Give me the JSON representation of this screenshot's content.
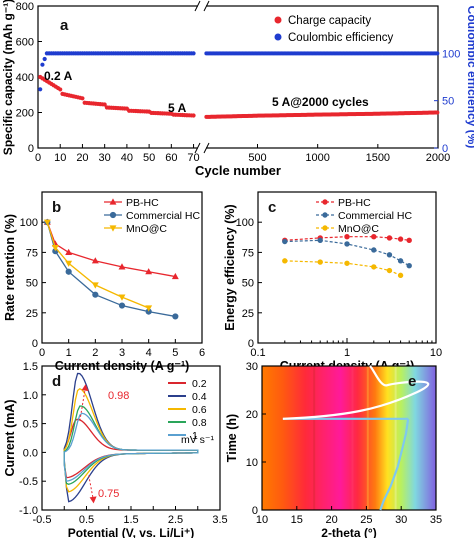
{
  "chart_data": [
    {
      "panel": "a",
      "type": "scatter",
      "ylabel": "Specific capacity (mAh g⁻¹)",
      "y2label": "Coulombic efficiency (%)",
      "xlabel": "Cycle number",
      "ylim": [
        0,
        800
      ],
      "y2lim": [
        0,
        150
      ],
      "yticks": [
        "0",
        "200",
        "400",
        "600",
        "800"
      ],
      "y2ticks": [
        "0",
        "50",
        "100"
      ],
      "xticks_left": [
        "0",
        "10",
        "20",
        "30",
        "40",
        "50",
        "60",
        "70"
      ],
      "xticks_right": [
        "500",
        "1000",
        "1500",
        "2000"
      ],
      "legend": [
        "Charge capacity",
        "Coulombic efficiency"
      ],
      "colors": {
        "charge": "#e8272e",
        "ce": "#1f3ccf"
      },
      "annotations": [
        "0.2 A",
        "5 A",
        "5 A@2000 cycles"
      ],
      "charge_steps": [
        {
          "from": 1,
          "to": 10,
          "start": 400,
          "end": 330
        },
        {
          "from": 11,
          "to": 20,
          "start": 305,
          "end": 280
        },
        {
          "from": 21,
          "to": 30,
          "start": 255,
          "end": 245
        },
        {
          "from": 31,
          "to": 40,
          "start": 228,
          "end": 222
        },
        {
          "from": 41,
          "to": 50,
          "start": 210,
          "end": 205
        },
        {
          "from": 51,
          "to": 60,
          "start": 198,
          "end": 193
        },
        {
          "from": 61,
          "to": 70,
          "start": 188,
          "end": 183
        }
      ],
      "long_cycle": {
        "x": [
          70,
          500,
          1000,
          1500,
          2000
        ],
        "charge": [
          175,
          182,
          188,
          193,
          200
        ],
        "ce": [
          100,
          100,
          100,
          100,
          100
        ]
      },
      "ce_first": [
        {
          "x": 1,
          "ce": 62
        },
        {
          "x": 2,
          "ce": 88
        },
        {
          "x": 3,
          "ce": 94
        }
      ],
      "ce_plateau": 100
    },
    {
      "panel": "b",
      "type": "line",
      "xlabel": "Current density (A g⁻¹)",
      "ylabel": "Rate retention (%)",
      "xlim": [
        0,
        6
      ],
      "ylim": [
        0,
        125
      ],
      "xticks": [
        "0",
        "1",
        "2",
        "3",
        "4",
        "5",
        "6"
      ],
      "yticks": [
        "0",
        "25",
        "50",
        "75",
        "100"
      ],
      "x": [
        0.2,
        0.5,
        1,
        2,
        3,
        4,
        5
      ],
      "series": [
        {
          "name": "PB-HC",
          "color": "#e8272e",
          "marker": "triangle",
          "x": [
            0.2,
            0.5,
            1,
            2,
            3,
            4,
            5
          ],
          "values": [
            100,
            82,
            75,
            68,
            63,
            59,
            55
          ]
        },
        {
          "name": "Commercial HC",
          "color": "#3a6a9a",
          "marker": "circle",
          "x": [
            0.2,
            0.5,
            1,
            2,
            3,
            4,
            5
          ],
          "values": [
            100,
            76,
            59,
            40,
            31,
            26,
            22
          ]
        },
        {
          "name": "MnO@C",
          "color": "#f5b800",
          "marker": "triangle-down",
          "x": [
            0.2,
            0.5,
            1,
            2,
            3,
            4
          ],
          "values": [
            100,
            79,
            66,
            48,
            38,
            29
          ]
        }
      ]
    },
    {
      "panel": "c",
      "type": "scatter",
      "xlabel": "Current density (A g⁻¹)",
      "ylabel": "Energy efficiency (%)",
      "xscale": "log",
      "xlim": [
        0.1,
        10
      ],
      "ylim": [
        0,
        125
      ],
      "xticks": [
        "0.1",
        "1",
        "10"
      ],
      "yticks": [
        "0",
        "25",
        "50",
        "75",
        "100"
      ],
      "series": [
        {
          "name": "PB-HC",
          "color": "#e8272e",
          "x": [
            0.2,
            0.5,
            1,
            2,
            3,
            4,
            5
          ],
          "values": [
            85,
            87,
            88,
            88,
            87,
            86,
            85
          ]
        },
        {
          "name": "Commercial HC",
          "color": "#3a6a9a",
          "x": [
            0.2,
            0.5,
            1,
            2,
            3,
            4,
            5
          ],
          "values": [
            84,
            85,
            82,
            77,
            73,
            68,
            64
          ]
        },
        {
          "name": "MnO@C",
          "color": "#f5b800",
          "x": [
            0.2,
            0.5,
            1,
            2,
            3,
            4
          ],
          "values": [
            68,
            67,
            66,
            63,
            60,
            56
          ]
        }
      ]
    },
    {
      "panel": "d",
      "type": "line",
      "xlabel": "Potential (V, vs. Li/Li⁺)",
      "ylabel": "Current (mA)",
      "xlim": [
        -0.5,
        3.5
      ],
      "ylim": [
        -1.0,
        1.5
      ],
      "xticks": [
        "-0.5",
        "0.0",
        "0.5",
        "1.0",
        "1.5",
        "2.0",
        "2.5",
        "3.0",
        "3.5"
      ],
      "yticks": [
        "-1.0",
        "-0.5",
        "0.0",
        "0.5",
        "1.0",
        "1.5"
      ],
      "legend_unit": "mV s⁻¹",
      "annotations": [
        "0.98",
        "0.75"
      ],
      "series": [
        {
          "name": "0.2",
          "color": "#d9262e",
          "peak_x": 0.28,
          "peak_y": 0.55,
          "min_x": 0.05,
          "min_y": -0.38
        },
        {
          "name": "0.4",
          "color": "#2b3f8c",
          "peak_x": 0.31,
          "peak_y": 1.35,
          "min_x": 0.08,
          "min_y": -0.8
        },
        {
          "name": "0.6",
          "color": "#f5b800",
          "peak_x": 0.33,
          "peak_y": 1.08,
          "min_x": 0.07,
          "min_y": -0.63
        },
        {
          "name": "0.8",
          "color": "#2aa55a",
          "peak_x": 0.36,
          "peak_y": 0.78,
          "min_x": 0.06,
          "min_y": -0.5
        },
        {
          "name": "1",
          "color": "#5aa0d0",
          "peak_x": 0.39,
          "peak_y": 0.65,
          "min_x": 0.05,
          "min_y": -0.44
        }
      ]
    },
    {
      "panel": "e",
      "type": "heatmap",
      "xlabel": "2-theta (°)",
      "ylabel": "Time (h)",
      "xlim": [
        10,
        35
      ],
      "ylim": [
        0,
        30
      ],
      "xticks": [
        "10",
        "15",
        "20",
        "25",
        "30",
        "35"
      ],
      "yticks": [
        "0",
        "10",
        "20",
        "30"
      ],
      "overlay_curve": [
        {
          "t": 0,
          "x": 27.0
        },
        {
          "t": 2,
          "x": 27.5
        },
        {
          "t": 5,
          "x": 28.5
        },
        {
          "t": 9,
          "x": 29.5
        },
        {
          "t": 13,
          "x": 30.2
        },
        {
          "t": 16,
          "x": 30.7
        },
        {
          "t": 19,
          "x": 31.0
        },
        {
          "t": 19,
          "x": 13.0
        },
        {
          "t": 22,
          "x": 28.5
        },
        {
          "t": 24.5,
          "x": 32.2
        },
        {
          "t": 26,
          "x": 28.0
        },
        {
          "t": 28,
          "x": 26.5
        },
        {
          "t": 30,
          "x": 25.5
        }
      ]
    }
  ]
}
